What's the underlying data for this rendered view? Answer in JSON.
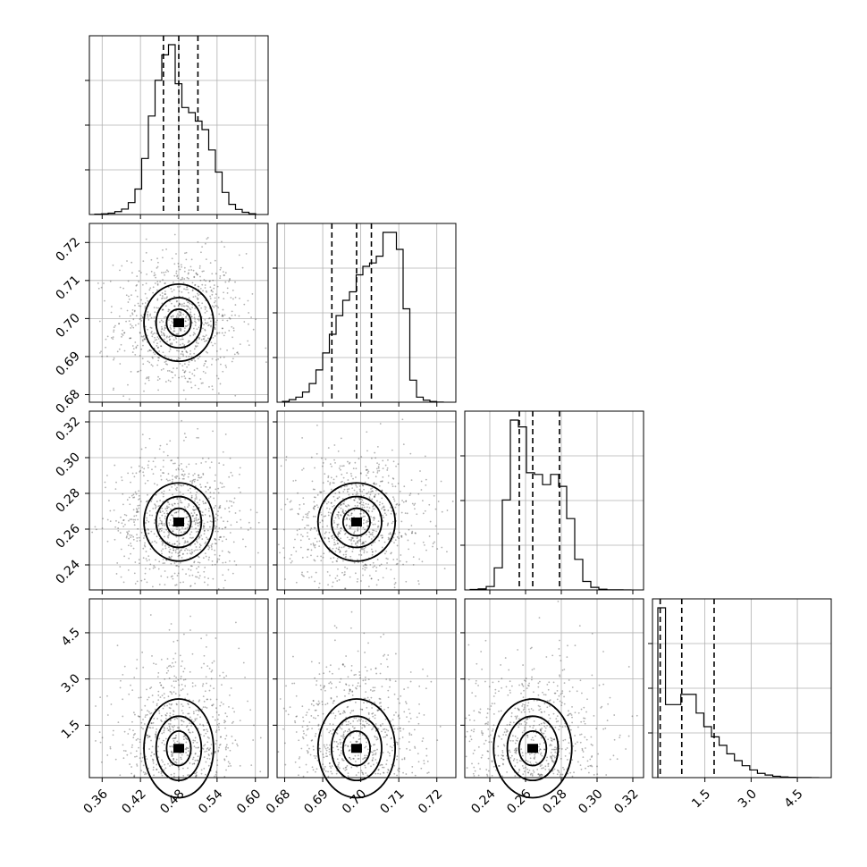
{
  "chart_data": {
    "type": "corner",
    "parameters": 4,
    "axes": [
      {
        "ticks": [
          "0.36",
          "0.42",
          "0.48",
          "0.54",
          "0.60"
        ],
        "range": [
          0.34,
          0.62
        ]
      },
      {
        "ticks": [
          "0.68",
          "0.69",
          "0.70",
          "0.71",
          "0.72"
        ],
        "range": [
          0.678,
          0.725
        ]
      },
      {
        "ticks": [
          "0.24",
          "0.26",
          "0.28",
          "0.30",
          "0.32"
        ],
        "range": [
          0.226,
          0.326
        ]
      },
      {
        "ticks": [
          "1.5",
          "3.0",
          "4.5"
        ],
        "range": [
          -0.2,
          5.6
        ]
      }
    ],
    "quantiles": [
      [
        0.456,
        0.48,
        0.51
      ],
      [
        0.6924,
        0.6989,
        0.7028
      ],
      [
        0.2565,
        0.264,
        0.279
      ],
      [
        0.05,
        0.75,
        1.8
      ]
    ],
    "histograms": [
      [
        0.002,
        0.004,
        0.008,
        0.017,
        0.032,
        0.07,
        0.15,
        0.33,
        0.58,
        0.79,
        0.94,
        1.0,
        0.77,
        0.63,
        0.6,
        0.55,
        0.5,
        0.38,
        0.25,
        0.13,
        0.06,
        0.03,
        0.013,
        0.005
      ],
      [
        0.005,
        0.015,
        0.03,
        0.06,
        0.11,
        0.19,
        0.29,
        0.4,
        0.51,
        0.6,
        0.65,
        0.75,
        0.8,
        0.82,
        0.86,
        1.0,
        1.0,
        0.9,
        0.55,
        0.13,
        0.03,
        0.012,
        0.004,
        0.001
      ],
      [
        0.003,
        0.006,
        0.02,
        0.13,
        0.53,
        1.0,
        0.96,
        0.69,
        0.68,
        0.62,
        0.68,
        0.61,
        0.42,
        0.18,
        0.05,
        0.015,
        0.004,
        0.001,
        0.0005,
        0.0002
      ],
      [
        1.0,
        0.43,
        0.43,
        0.49,
        0.49,
        0.38,
        0.3,
        0.24,
        0.19,
        0.14,
        0.1,
        0.07,
        0.045,
        0.025,
        0.015,
        0.008,
        0.004,
        0.002,
        0.001,
        0.0005,
        0.0002
      ]
    ],
    "grid": true
  }
}
